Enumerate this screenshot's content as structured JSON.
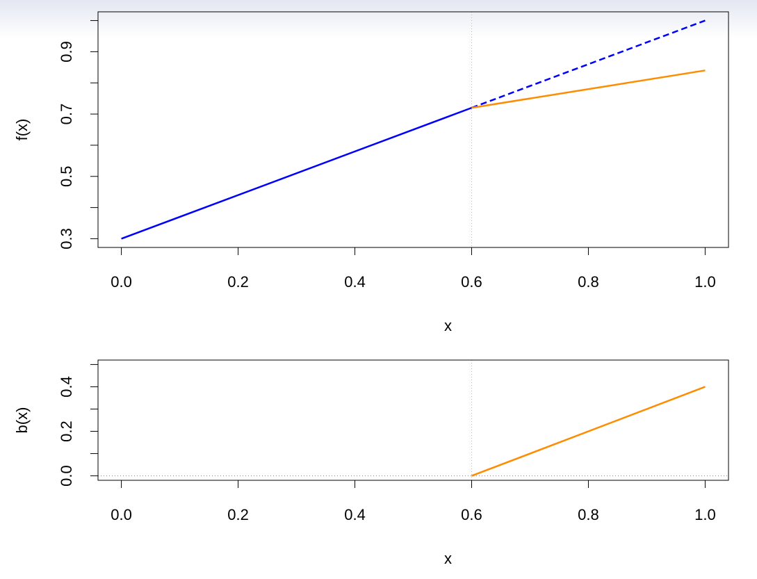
{
  "chart_data": [
    {
      "type": "line",
      "xlabel": "x",
      "ylabel": "f(x)",
      "xlim": [
        -0.04,
        1.04
      ],
      "ylim": [
        0.272,
        1.028
      ],
      "xticks": [
        {
          "value": 0,
          "label": "0.0"
        },
        0.2,
        0.4,
        0.6,
        0.8,
        {
          "value": 1,
          "label": "1.0"
        }
      ],
      "yticks": [
        0.3,
        0.5,
        0.7,
        0.9
      ],
      "yminorticks": [
        0.4,
        0.6,
        0.8,
        1.0
      ],
      "vline": 0.6,
      "series": [
        {
          "color": "#0000ff",
          "dash": false,
          "x": [
            0,
            0.6
          ],
          "values": [
            0.3,
            0.72
          ]
        },
        {
          "color": "#0000ff",
          "dash": true,
          "x": [
            0.6,
            1
          ],
          "values": [
            0.72,
            1.0
          ]
        },
        {
          "color": "#ff8c00",
          "dash": false,
          "x": [
            0.6,
            1
          ],
          "values": [
            0.72,
            0.84
          ]
        }
      ]
    },
    {
      "type": "line",
      "xlabel": "x",
      "ylabel": "b(x)",
      "xlim": [
        -0.04,
        1.04
      ],
      "ylim": [
        -0.02,
        0.52
      ],
      "xticks": [
        {
          "value": 0,
          "label": "0.0"
        },
        0.2,
        0.4,
        0.6,
        0.8,
        {
          "value": 1,
          "label": "1.0"
        }
      ],
      "yticks": [
        {
          "value": 0,
          "label": "0.0"
        },
        0.2,
        0.4
      ],
      "yminorticks": [
        0.1,
        0.3,
        0.5
      ],
      "vline": 0.6,
      "hline": 0,
      "series": [
        {
          "color": "#ff8c00",
          "dash": false,
          "x": [
            0.6,
            1
          ],
          "values": [
            0,
            0.4
          ]
        }
      ]
    }
  ]
}
